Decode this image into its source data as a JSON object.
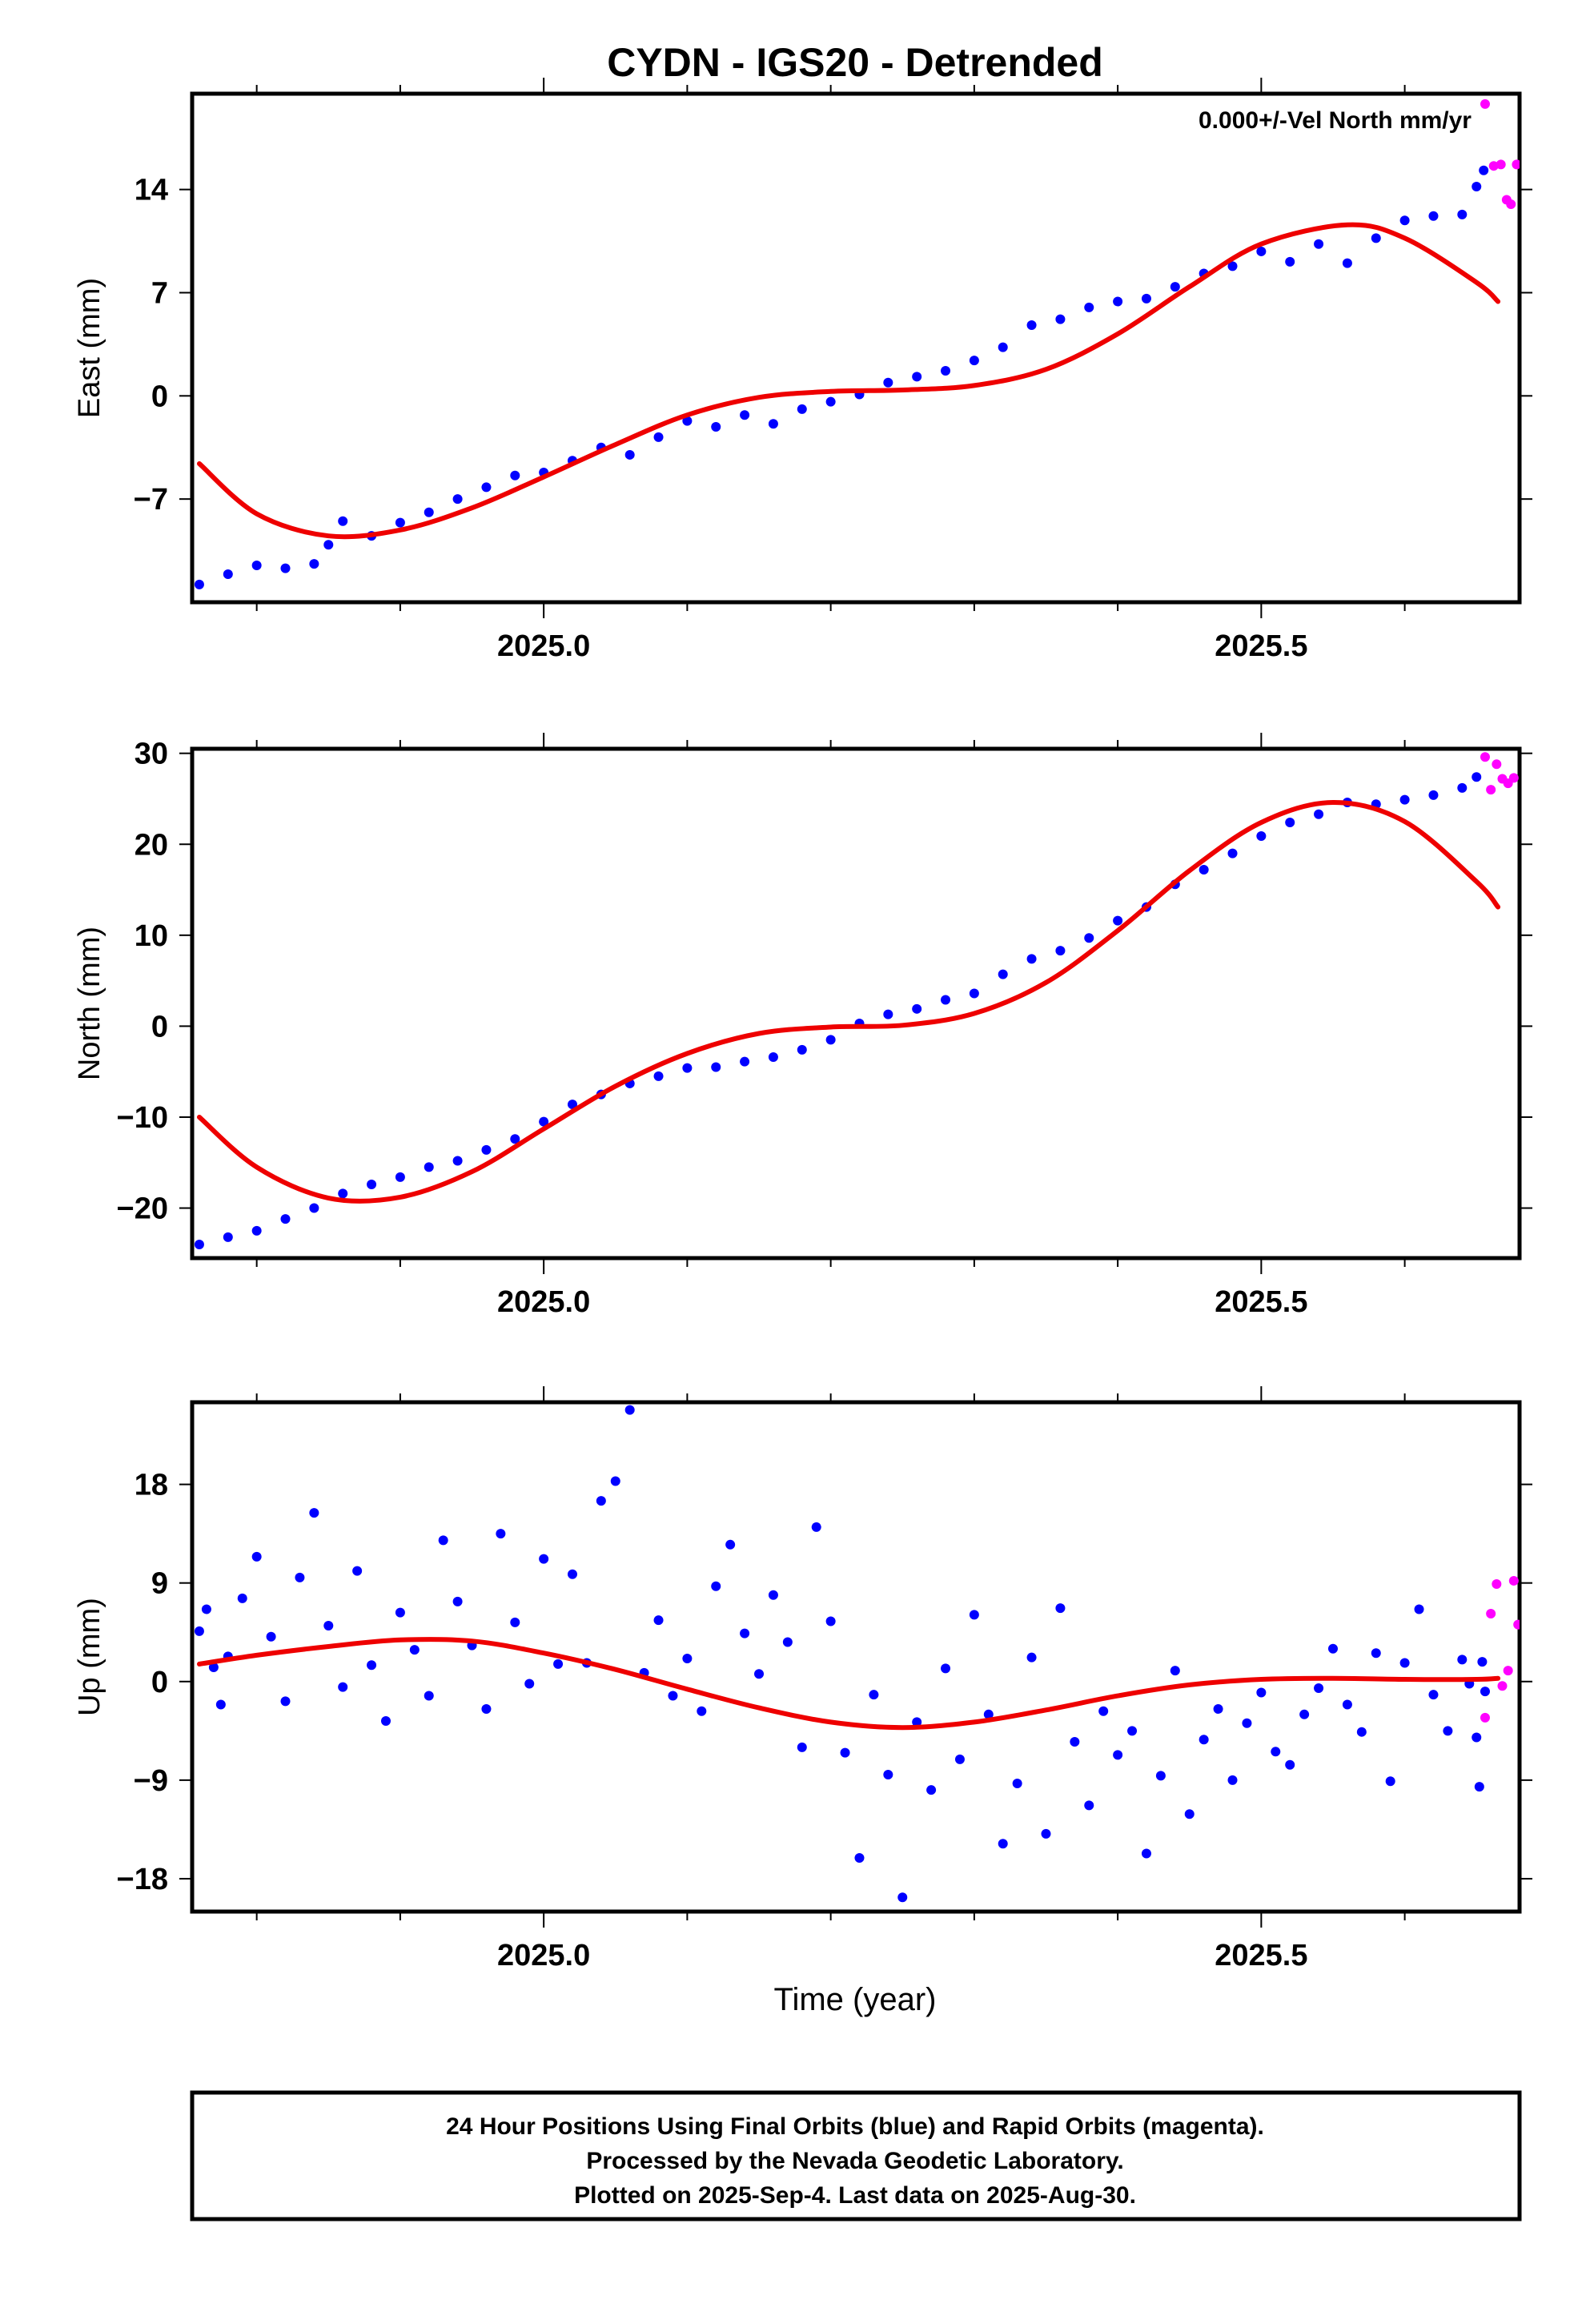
{
  "chart_data": {
    "type": "scatter",
    "title": "CYDN - IGS20 - Detrended",
    "xlabel": "Time (year)",
    "xlim": [
      2024.755,
      2025.68
    ],
    "x_ticks": [
      2025.0,
      2025.5
    ],
    "x_tick_labels": [
      "2025.0",
      "2025.5"
    ],
    "x_minor_ticks": [
      2024.8,
      2024.9,
      2025.1,
      2025.2,
      2025.3,
      2025.4,
      2025.6
    ],
    "grid": false,
    "colors": {
      "final": "#0000ff",
      "rapid": "#ff00ff",
      "fit": "#ee0000"
    },
    "legend_note": "24 Hour Positions Using Final Orbits (blue) and Rapid Orbits (magenta).",
    "panels": [
      {
        "id": "east",
        "ylabel": "East (mm)",
        "ylim": [
          -14.0,
          20.5
        ],
        "y_ticks": [
          14,
          7,
          0,
          -7
        ],
        "y_tick_labels": [
          "14",
          "7",
          "0",
          "−7"
        ],
        "annotation": "0.000+/-Vel North mm/yr",
        "fit_points": [
          [
            2024.76,
            -4.6
          ],
          [
            2024.8,
            -8.0
          ],
          [
            2024.85,
            -9.5
          ],
          [
            2024.9,
            -9.1
          ],
          [
            2024.95,
            -7.6
          ],
          [
            2025.0,
            -5.5
          ],
          [
            2025.05,
            -3.3
          ],
          [
            2025.1,
            -1.3
          ],
          [
            2025.15,
            -0.1
          ],
          [
            2025.2,
            0.3
          ],
          [
            2025.25,
            0.4
          ],
          [
            2025.3,
            0.7
          ],
          [
            2025.35,
            1.8
          ],
          [
            2025.4,
            4.2
          ],
          [
            2025.45,
            7.4
          ],
          [
            2025.5,
            10.3
          ],
          [
            2025.56,
            11.6
          ],
          [
            2025.6,
            10.7
          ],
          [
            2025.65,
            7.7
          ],
          [
            2025.665,
            6.4
          ]
        ],
        "final_points": [
          [
            2024.76,
            -12.8
          ],
          [
            2024.78,
            -12.1
          ],
          [
            2024.8,
            -11.5
          ],
          [
            2024.82,
            -11.7
          ],
          [
            2024.84,
            -11.4
          ],
          [
            2024.85,
            -10.1
          ],
          [
            2024.86,
            -8.5
          ],
          [
            2024.88,
            -9.5
          ],
          [
            2024.9,
            -8.6
          ],
          [
            2024.92,
            -7.9
          ],
          [
            2024.94,
            -7.0
          ],
          [
            2024.96,
            -6.2
          ],
          [
            2024.98,
            -5.4
          ],
          [
            2025.0,
            -5.2
          ],
          [
            2025.02,
            -4.4
          ],
          [
            2025.04,
            -3.5
          ],
          [
            2025.06,
            -4.0
          ],
          [
            2025.08,
            -2.8
          ],
          [
            2025.1,
            -1.7
          ],
          [
            2025.12,
            -2.1
          ],
          [
            2025.14,
            -1.3
          ],
          [
            2025.16,
            -1.9
          ],
          [
            2025.18,
            -0.9
          ],
          [
            2025.2,
            -0.4
          ],
          [
            2025.22,
            0.1
          ],
          [
            2025.24,
            0.9
          ],
          [
            2025.26,
            1.3
          ],
          [
            2025.28,
            1.7
          ],
          [
            2025.3,
            2.4
          ],
          [
            2025.32,
            3.3
          ],
          [
            2025.34,
            4.8
          ],
          [
            2025.36,
            5.2
          ],
          [
            2025.38,
            6.0
          ],
          [
            2025.4,
            6.4
          ],
          [
            2025.42,
            6.6
          ],
          [
            2025.44,
            7.4
          ],
          [
            2025.46,
            8.3
          ],
          [
            2025.48,
            8.8
          ],
          [
            2025.5,
            9.8
          ],
          [
            2025.52,
            9.1
          ],
          [
            2025.54,
            10.3
          ],
          [
            2025.56,
            9.0
          ],
          [
            2025.58,
            10.7
          ],
          [
            2025.6,
            11.9
          ],
          [
            2025.62,
            12.2
          ],
          [
            2025.64,
            12.3
          ],
          [
            2025.65,
            14.2
          ],
          [
            2025.655,
            15.3
          ]
        ],
        "rapid_points": [
          [
            2025.656,
            19.8
          ],
          [
            2025.662,
            15.6
          ],
          [
            2025.667,
            15.7
          ],
          [
            2025.671,
            13.3
          ],
          [
            2025.674,
            13.0
          ],
          [
            2025.678,
            15.7
          ]
        ]
      },
      {
        "id": "north",
        "ylabel": "North (mm)",
        "ylim": [
          -25.5,
          30.5
        ],
        "y_ticks": [
          30,
          20,
          10,
          0,
          -10,
          -20
        ],
        "y_tick_labels": [
          "30",
          "20",
          "10",
          "0",
          "−10",
          "−20"
        ],
        "annotation": "",
        "fit_points": [
          [
            2024.76,
            -10.0
          ],
          [
            2024.8,
            -15.5
          ],
          [
            2024.85,
            -18.9
          ],
          [
            2024.9,
            -18.8
          ],
          [
            2024.95,
            -16.0
          ],
          [
            2025.0,
            -11.3
          ],
          [
            2025.05,
            -6.6
          ],
          [
            2025.1,
            -3.0
          ],
          [
            2025.15,
            -0.8
          ],
          [
            2025.2,
            -0.1
          ],
          [
            2025.25,
            0.1
          ],
          [
            2025.3,
            1.4
          ],
          [
            2025.35,
            4.8
          ],
          [
            2025.4,
            10.5
          ],
          [
            2025.45,
            17.1
          ],
          [
            2025.5,
            22.4
          ],
          [
            2025.55,
            24.6
          ],
          [
            2025.6,
            22.5
          ],
          [
            2025.65,
            15.9
          ],
          [
            2025.665,
            13.1
          ]
        ],
        "final_points": [
          [
            2024.76,
            -24.0
          ],
          [
            2024.78,
            -23.2
          ],
          [
            2024.8,
            -22.5
          ],
          [
            2024.82,
            -21.2
          ],
          [
            2024.84,
            -20.0
          ],
          [
            2024.86,
            -18.4
          ],
          [
            2024.88,
            -17.4
          ],
          [
            2024.9,
            -16.6
          ],
          [
            2024.92,
            -15.5
          ],
          [
            2024.94,
            -14.8
          ],
          [
            2024.96,
            -13.6
          ],
          [
            2024.98,
            -12.4
          ],
          [
            2025.0,
            -10.5
          ],
          [
            2025.02,
            -8.6
          ],
          [
            2025.04,
            -7.5
          ],
          [
            2025.06,
            -6.3
          ],
          [
            2025.08,
            -5.5
          ],
          [
            2025.1,
            -4.6
          ],
          [
            2025.12,
            -4.5
          ],
          [
            2025.14,
            -3.9
          ],
          [
            2025.16,
            -3.4
          ],
          [
            2025.18,
            -2.6
          ],
          [
            2025.2,
            -1.5
          ],
          [
            2025.22,
            0.3
          ],
          [
            2025.24,
            1.3
          ],
          [
            2025.26,
            1.9
          ],
          [
            2025.28,
            2.9
          ],
          [
            2025.3,
            3.6
          ],
          [
            2025.32,
            5.7
          ],
          [
            2025.34,
            7.4
          ],
          [
            2025.36,
            8.3
          ],
          [
            2025.38,
            9.7
          ],
          [
            2025.4,
            11.6
          ],
          [
            2025.42,
            13.1
          ],
          [
            2025.44,
            15.6
          ],
          [
            2025.46,
            17.2
          ],
          [
            2025.48,
            19.0
          ],
          [
            2025.5,
            20.9
          ],
          [
            2025.52,
            22.4
          ],
          [
            2025.54,
            23.3
          ],
          [
            2025.56,
            24.6
          ],
          [
            2025.58,
            24.4
          ],
          [
            2025.6,
            24.9
          ],
          [
            2025.62,
            25.4
          ],
          [
            2025.64,
            26.2
          ],
          [
            2025.65,
            27.4
          ]
        ],
        "rapid_points": [
          [
            2025.656,
            29.6
          ],
          [
            2025.66,
            26.0
          ],
          [
            2025.664,
            28.8
          ],
          [
            2025.668,
            27.2
          ],
          [
            2025.672,
            26.7
          ],
          [
            2025.676,
            27.3
          ]
        ]
      },
      {
        "id": "up",
        "ylabel": "Up (mm)",
        "ylim": [
          -21.0,
          25.5
        ],
        "y_ticks": [
          18,
          9,
          0,
          -9,
          -18
        ],
        "y_tick_labels": [
          "18",
          "9",
          "0",
          "−9",
          "−18"
        ],
        "annotation": "",
        "fit_points": [
          [
            2024.76,
            1.6
          ],
          [
            2024.8,
            2.4
          ],
          [
            2024.85,
            3.2
          ],
          [
            2024.9,
            3.8
          ],
          [
            2024.95,
            3.7
          ],
          [
            2025.0,
            2.6
          ],
          [
            2025.05,
            1.1
          ],
          [
            2025.1,
            -0.7
          ],
          [
            2025.15,
            -2.4
          ],
          [
            2025.2,
            -3.7
          ],
          [
            2025.25,
            -4.2
          ],
          [
            2025.3,
            -3.7
          ],
          [
            2025.35,
            -2.6
          ],
          [
            2025.4,
            -1.3
          ],
          [
            2025.45,
            -0.3
          ],
          [
            2025.5,
            0.2
          ],
          [
            2025.55,
            0.3
          ],
          [
            2025.6,
            0.2
          ],
          [
            2025.65,
            0.2
          ],
          [
            2025.665,
            0.3
          ]
        ],
        "final_points": [
          [
            2024.76,
            4.6
          ],
          [
            2024.765,
            6.6
          ],
          [
            2024.77,
            1.3
          ],
          [
            2024.775,
            -2.1
          ],
          [
            2024.78,
            2.3
          ],
          [
            2024.79,
            7.6
          ],
          [
            2024.8,
            11.4
          ],
          [
            2024.81,
            4.1
          ],
          [
            2024.82,
            -1.8
          ],
          [
            2024.83,
            9.5
          ],
          [
            2024.84,
            15.4
          ],
          [
            2024.85,
            5.1
          ],
          [
            2024.86,
            -0.5
          ],
          [
            2024.87,
            10.1
          ],
          [
            2024.88,
            1.5
          ],
          [
            2024.89,
            -3.6
          ],
          [
            2024.9,
            6.3
          ],
          [
            2024.91,
            2.9
          ],
          [
            2024.92,
            -1.3
          ],
          [
            2024.93,
            12.9
          ],
          [
            2024.94,
            7.3
          ],
          [
            2024.95,
            3.3
          ],
          [
            2024.96,
            -2.5
          ],
          [
            2024.97,
            13.5
          ],
          [
            2024.98,
            5.4
          ],
          [
            2024.99,
            -0.2
          ],
          [
            2025.0,
            11.2
          ],
          [
            2025.01,
            1.6
          ],
          [
            2025.02,
            9.8
          ],
          [
            2025.03,
            1.7
          ],
          [
            2025.04,
            16.5
          ],
          [
            2025.05,
            18.3
          ],
          [
            2025.06,
            24.8
          ],
          [
            2025.07,
            0.8
          ],
          [
            2025.08,
            5.6
          ],
          [
            2025.09,
            -1.3
          ],
          [
            2025.1,
            2.1
          ],
          [
            2025.11,
            -2.7
          ],
          [
            2025.12,
            8.7
          ],
          [
            2025.13,
            12.5
          ],
          [
            2025.14,
            4.4
          ],
          [
            2025.15,
            0.7
          ],
          [
            2025.16,
            7.9
          ],
          [
            2025.17,
            3.6
          ],
          [
            2025.18,
            -6.0
          ],
          [
            2025.19,
            14.1
          ],
          [
            2025.2,
            5.5
          ],
          [
            2025.21,
            -6.5
          ],
          [
            2025.22,
            -16.1
          ],
          [
            2025.23,
            -1.2
          ],
          [
            2025.24,
            -8.5
          ],
          [
            2025.25,
            -19.7
          ],
          [
            2025.26,
            -3.7
          ],
          [
            2025.27,
            -9.9
          ],
          [
            2025.28,
            1.2
          ],
          [
            2025.29,
            -7.1
          ],
          [
            2025.3,
            6.1
          ],
          [
            2025.31,
            -3.0
          ],
          [
            2025.32,
            -14.8
          ],
          [
            2025.33,
            -9.3
          ],
          [
            2025.34,
            2.2
          ],
          [
            2025.35,
            -13.9
          ],
          [
            2025.36,
            6.7
          ],
          [
            2025.37,
            -5.5
          ],
          [
            2025.38,
            -11.3
          ],
          [
            2025.39,
            -2.7
          ],
          [
            2025.4,
            -6.7
          ],
          [
            2025.41,
            -4.5
          ],
          [
            2025.42,
            -15.7
          ],
          [
            2025.43,
            -8.6
          ],
          [
            2025.44,
            1.0
          ],
          [
            2025.45,
            -12.1
          ],
          [
            2025.46,
            -5.3
          ],
          [
            2025.47,
            -2.5
          ],
          [
            2025.48,
            -9.0
          ],
          [
            2025.49,
            -3.8
          ],
          [
            2025.5,
            -1.0
          ],
          [
            2025.51,
            -6.4
          ],
          [
            2025.52,
            -7.6
          ],
          [
            2025.53,
            -3.0
          ],
          [
            2025.54,
            -0.6
          ],
          [
            2025.55,
            3.0
          ],
          [
            2025.56,
            -2.1
          ],
          [
            2025.57,
            -4.6
          ],
          [
            2025.58,
            2.6
          ],
          [
            2025.59,
            -9.1
          ],
          [
            2025.6,
            1.7
          ],
          [
            2025.61,
            6.6
          ],
          [
            2025.62,
            -1.2
          ],
          [
            2025.63,
            -4.5
          ],
          [
            2025.64,
            2.0
          ],
          [
            2025.645,
            -0.2
          ],
          [
            2025.65,
            -5.1
          ],
          [
            2025.652,
            -9.6
          ],
          [
            2025.654,
            1.8
          ],
          [
            2025.656,
            -0.9
          ]
        ],
        "rapid_points": [
          [
            2025.656,
            -3.3
          ],
          [
            2025.66,
            6.2
          ],
          [
            2025.664,
            8.9
          ],
          [
            2025.668,
            -0.4
          ],
          [
            2025.672,
            1.0
          ],
          [
            2025.676,
            9.2
          ],
          [
            2025.679,
            5.2
          ]
        ]
      }
    ],
    "footer": [
      "24 Hour Positions Using Final Orbits (blue) and Rapid Orbits (magenta).",
      "Processed by the Nevada Geodetic Laboratory.",
      "Plotted on 2025-Sep-4. Last data on 2025-Aug-30."
    ]
  }
}
